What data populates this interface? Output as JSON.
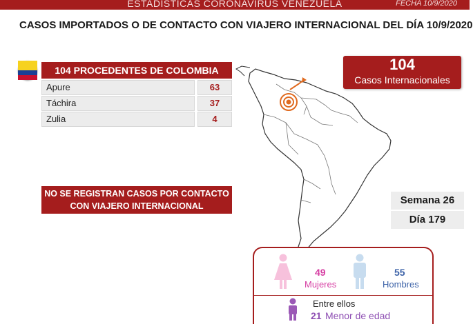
{
  "header": {
    "title": "ESTADÍSTICAS CORONAVIRUS VENEZUELA",
    "date": "FECHA 10/9/2020"
  },
  "main_title": "CASOS IMPORTADOS O DE CONTACTO CON VIAJERO INTERNACIONAL DEL DÍA  10/9/2020",
  "colombia": {
    "header": "104 PROCEDENTES DE COLOMBIA",
    "rows": [
      {
        "state": "Apure",
        "count": "63"
      },
      {
        "state": "Táchira",
        "count": "37"
      },
      {
        "state": "Zulia",
        "count": "4"
      }
    ]
  },
  "no_contact_notice": {
    "line1": "NO SE REGISTRAN CASOS POR CONTACTO",
    "line2": "CON VIAJERO INTERNACIONAL"
  },
  "international": {
    "count": "104",
    "label": "Casos Internacionales"
  },
  "week": "Semana 26",
  "day": "Día 179",
  "gender": {
    "women_count": "49",
    "women_label": "Mujeres",
    "men_count": "55",
    "men_label": "Hombres",
    "among_label": "Entre ellos",
    "minors_count": "21",
    "minors_label": "Menor de edad"
  },
  "colors": {
    "primary": "#a51d1d",
    "women": "#d63fa3",
    "men": "#3d63a8",
    "minors": "#8e4fb3",
    "marker": "#e06a1f"
  },
  "icons": [
    "colombia-flag-icon",
    "south-america-map",
    "origin-marker-icon",
    "woman-icon",
    "man-icon",
    "child-icon"
  ]
}
